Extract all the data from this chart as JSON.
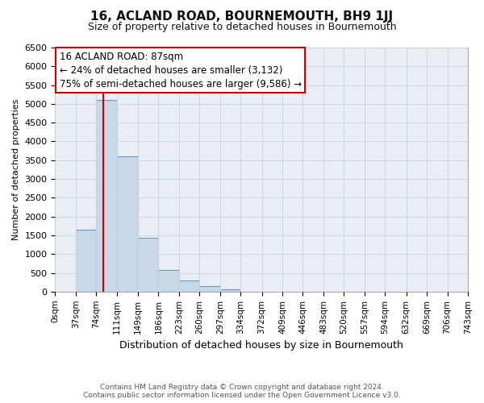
{
  "title": "16, ACLAND ROAD, BOURNEMOUTH, BH9 1JJ",
  "subtitle": "Size of property relative to detached houses in Bournemouth",
  "xlabel": "Distribution of detached houses by size in Bournemouth",
  "ylabel": "Number of detached properties",
  "bin_edges": [
    0,
    37,
    74,
    111,
    149,
    186,
    223,
    260,
    297,
    334,
    372,
    409,
    446,
    483,
    520,
    557,
    594,
    632,
    669,
    706,
    743
  ],
  "bar_heights": [
    0,
    1650,
    5100,
    3600,
    1430,
    580,
    300,
    150,
    60,
    0,
    0,
    0,
    0,
    0,
    0,
    0,
    0,
    0,
    0,
    0
  ],
  "bar_color": "#c8d8e8",
  "bar_edgecolor": "#6699bb",
  "property_size": 87,
  "annotation_line1": "16 ACLAND ROAD: 87sqm",
  "annotation_line2": "← 24% of detached houses are smaller (3,132)",
  "annotation_line3": "75% of semi-detached houses are larger (9,586) →",
  "vline_color": "#cc0000",
  "annotation_box_edgecolor": "#cc0000",
  "annotation_box_facecolor": "#ffffff",
  "ylim": [
    0,
    6500
  ],
  "yticks": [
    0,
    500,
    1000,
    1500,
    2000,
    2500,
    3000,
    3500,
    4000,
    4500,
    5000,
    5500,
    6000,
    6500
  ],
  "tick_labels": [
    "0sqm",
    "37sqm",
    "74sqm",
    "111sqm",
    "149sqm",
    "186sqm",
    "223sqm",
    "260sqm",
    "297sqm",
    "334sqm",
    "372sqm",
    "409sqm",
    "446sqm",
    "483sqm",
    "520sqm",
    "557sqm",
    "594sqm",
    "632sqm",
    "669sqm",
    "706sqm",
    "743sqm"
  ],
  "footer_line1": "Contains HM Land Registry data © Crown copyright and database right 2024.",
  "footer_line2": "Contains public sector information licensed under the Open Government Licence v3.0.",
  "grid_color": "#ccd6e0",
  "background_color": "#e8eef4",
  "title_fontsize": 11,
  "subtitle_fontsize": 9,
  "ylabel_fontsize": 8,
  "xlabel_fontsize": 9,
  "tick_fontsize": 7.5,
  "ytick_fontsize": 8,
  "annotation_fontsize": 8.5,
  "footer_fontsize": 6.5
}
